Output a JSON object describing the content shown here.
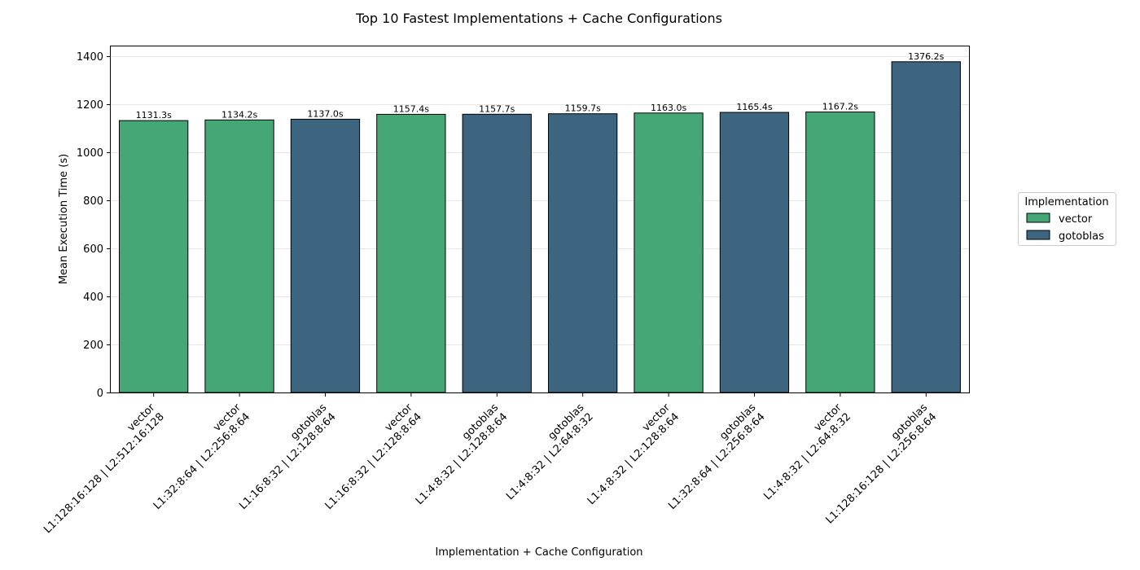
{
  "chart_data": {
    "type": "bar",
    "title": "Top 10 Fastest Implementations + Cache Configurations",
    "xlabel": "Implementation + Cache Configuration",
    "ylabel": "Mean Execution Time (s)",
    "ylim": [
      0,
      1440
    ],
    "yticks": [
      0,
      200,
      400,
      600,
      800,
      1000,
      1200,
      1400
    ],
    "grid": "horizontal",
    "legend": {
      "title": "Implementation",
      "placement": "right",
      "entries": [
        {
          "name": "vector",
          "color": "#45a775"
        },
        {
          "name": "gotoblas",
          "color": "#3d6580"
        }
      ]
    },
    "bars": [
      {
        "implementation": "vector",
        "config": "L1:128:16:128 | L2:512:16:128",
        "value": 1131.3,
        "label": "1131.3s"
      },
      {
        "implementation": "vector",
        "config": "L1:32:8:64 | L2:256:8:64",
        "value": 1134.2,
        "label": "1134.2s"
      },
      {
        "implementation": "gotoblas",
        "config": "L1:16:8:32 | L2:128:8:64",
        "value": 1137.0,
        "label": "1137.0s"
      },
      {
        "implementation": "vector",
        "config": "L1:16:8:32 | L2:128:8:64",
        "value": 1157.4,
        "label": "1157.4s"
      },
      {
        "implementation": "gotoblas",
        "config": "L1:4:8:32 | L2:128:8:64",
        "value": 1157.7,
        "label": "1157.7s"
      },
      {
        "implementation": "gotoblas",
        "config": "L1:4:8:32 | L2:64:8:32",
        "value": 1159.7,
        "label": "1159.7s"
      },
      {
        "implementation": "vector",
        "config": "L1:4:8:32 | L2:128:8:64",
        "value": 1163.0,
        "label": "1163.0s"
      },
      {
        "implementation": "gotoblas",
        "config": "L1:32:8:64 | L2:256:8:64",
        "value": 1165.4,
        "label": "1165.4s"
      },
      {
        "implementation": "vector",
        "config": "L1:4:8:32 | L2:64:8:32",
        "value": 1167.2,
        "label": "1167.2s"
      },
      {
        "implementation": "gotoblas",
        "config": "L1:128:16:128 | L2:256:8:64",
        "value": 1376.2,
        "label": "1376.2s"
      }
    ]
  }
}
